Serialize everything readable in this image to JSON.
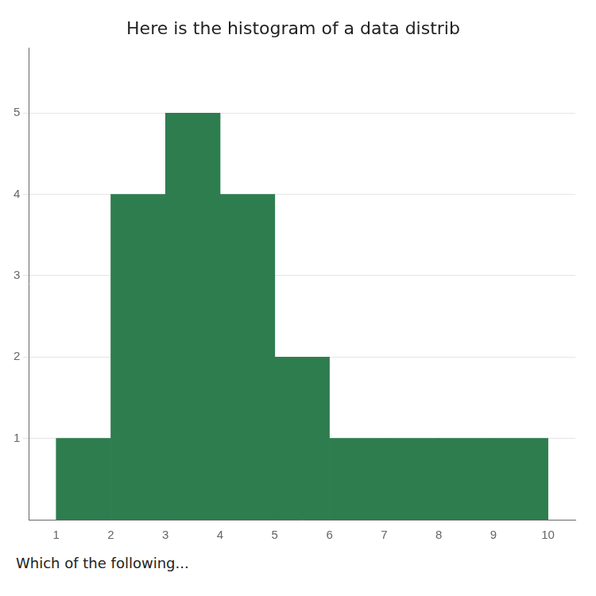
{
  "chart_data": {
    "type": "histogram",
    "title": "Here is the histogram of a data distrib",
    "bins": [
      1,
      2,
      3,
      4,
      5,
      6,
      7,
      8,
      9,
      10
    ],
    "values": [
      1,
      4,
      5,
      4,
      2,
      1,
      1,
      1,
      1
    ],
    "color": "#2e7d4f",
    "xlim": [
      0.5,
      10.5
    ],
    "xticks": [
      1,
      2,
      3,
      4,
      5,
      6,
      7,
      8,
      9,
      10
    ],
    "ylim": [
      0,
      5.8
    ],
    "yticks": [
      1,
      2,
      3,
      4,
      5
    ],
    "grid": "y",
    "annotations": [
      "Which of the following..."
    ]
  }
}
